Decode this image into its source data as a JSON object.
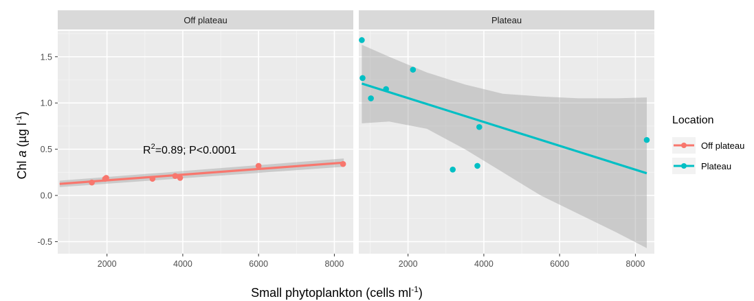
{
  "chart_data": {
    "type": "scatter",
    "xlabel_main": "Small phytoplankton (cells ml",
    "xlabel_sup": "-1",
    "xlabel_end": ")",
    "ylabel_pre": "Chl ",
    "ylabel_italic": "a",
    "ylabel_unit": " (µg l",
    "ylabel_sup": "-1",
    "ylabel_end": ")",
    "xlim": [
      700,
      8500
    ],
    "ylim": [
      -0.63,
      1.78
    ],
    "x_ticks": [
      2000,
      4000,
      6000,
      8000
    ],
    "x_tick_labels": [
      "2000",
      "4000",
      "6000",
      "8000"
    ],
    "y_ticks": [
      -0.5,
      0.0,
      0.5,
      1.0,
      1.5
    ],
    "y_tick_labels": [
      "-0.5",
      "0.0",
      "0.5",
      "1.0",
      "1.5"
    ],
    "grid": true,
    "legend": {
      "title": "Location",
      "placement": "right",
      "entries": [
        "Off plateau",
        "Plateau"
      ]
    },
    "panels": [
      {
        "strip": "Off plateau",
        "color": "#F8766D",
        "points": [
          {
            "x": 1600,
            "y": 0.14
          },
          {
            "x": 1950,
            "y": 0.18
          },
          {
            "x": 1980,
            "y": 0.19
          },
          {
            "x": 3200,
            "y": 0.18
          },
          {
            "x": 3800,
            "y": 0.21
          },
          {
            "x": 3930,
            "y": 0.19
          },
          {
            "x": 6000,
            "y": 0.32
          },
          {
            "x": 8230,
            "y": 0.34
          }
        ],
        "fit": {
          "x": [
            750,
            8250
          ],
          "y": [
            0.125,
            0.355
          ]
        },
        "ribbon": {
          "x": [
            750,
            8250
          ],
          "lower": [
            0.09,
            0.31
          ],
          "upper": [
            0.16,
            0.4
          ]
        },
        "annotation_pre": "R",
        "annotation_sup": "2",
        "annotation_post": "=0.89; P<0.0001"
      },
      {
        "strip": "Plateau",
        "color": "#00BFC4",
        "points": [
          {
            "x": 780,
            "y": 1.68
          },
          {
            "x": 800,
            "y": 1.27
          },
          {
            "x": 1020,
            "y": 1.05
          },
          {
            "x": 1420,
            "y": 1.15
          },
          {
            "x": 2130,
            "y": 1.36
          },
          {
            "x": 3180,
            "y": 0.28
          },
          {
            "x": 3830,
            "y": 0.32
          },
          {
            "x": 3880,
            "y": 0.74
          },
          {
            "x": 8300,
            "y": 0.6
          }
        ],
        "fit": {
          "x": [
            780,
            8300
          ],
          "y": [
            1.21,
            0.24
          ]
        },
        "ribbon": {
          "x": [
            780,
            1500,
            2500,
            3500,
            4500,
            5500,
            6500,
            7500,
            8300
          ],
          "lower": [
            0.78,
            0.8,
            0.72,
            0.5,
            0.25,
            0.0,
            -0.2,
            -0.4,
            -0.57
          ],
          "upper": [
            1.63,
            1.5,
            1.33,
            1.2,
            1.1,
            1.07,
            1.05,
            1.05,
            1.06
          ]
        }
      }
    ]
  }
}
